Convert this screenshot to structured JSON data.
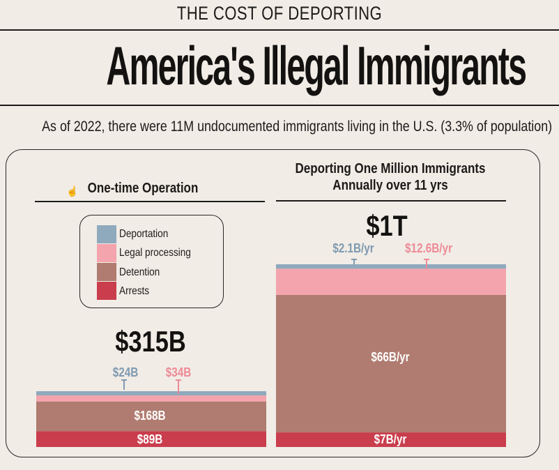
{
  "header": {
    "kicker": "THE COST OF DEPORTING",
    "title": "America's Illegal Immigrants",
    "subtitle": "As of 2022, there were 11M undocumented immigrants living in the U.S. (3.3% of population)"
  },
  "legend": {
    "items": [
      {
        "label": "Deportation",
        "color": "#8fa9bd"
      },
      {
        "label": "Legal processing",
        "color": "#f4a4ad"
      },
      {
        "label": "Detention",
        "color": "#b07b70"
      },
      {
        "label": "Arrests",
        "color": "#c93d4c"
      }
    ]
  },
  "colors": {
    "deportation": "#8fa9bd",
    "legal_processing": "#f4a4ad",
    "legal_processing_dark": "#f79aa6",
    "detention": "#b07b70",
    "arrests": "#c93d4c",
    "callout_blue": "#7f9ab1",
    "callout_pink": "#ee8a96"
  },
  "chart_data": [
    {
      "type": "bar",
      "title": "One-time Operation",
      "total_label": "$315B",
      "series": [
        {
          "name": "Arrests",
          "value": 89,
          "label": "$89B"
        },
        {
          "name": "Detention",
          "value": 168,
          "label": "$168B"
        },
        {
          "name": "Legal processing",
          "value": 34,
          "label": "$34B"
        },
        {
          "name": "Deportation",
          "value": 24,
          "label": "$24B"
        }
      ],
      "unit": "$B"
    },
    {
      "type": "bar",
      "title": "Deporting One Million Immigrants Annually over 11 yrs",
      "total_label": "$1T",
      "series": [
        {
          "name": "Arrests",
          "value": 7,
          "label": "$7B/yr"
        },
        {
          "name": "Detention",
          "value": 66,
          "label": "$66B/yr"
        },
        {
          "name": "Legal processing",
          "value": 12.6,
          "label": "$12.6B/yr"
        },
        {
          "name": "Deportation",
          "value": 2.1,
          "label": "$2.1B/yr"
        }
      ],
      "unit": "$B/yr"
    }
  ]
}
